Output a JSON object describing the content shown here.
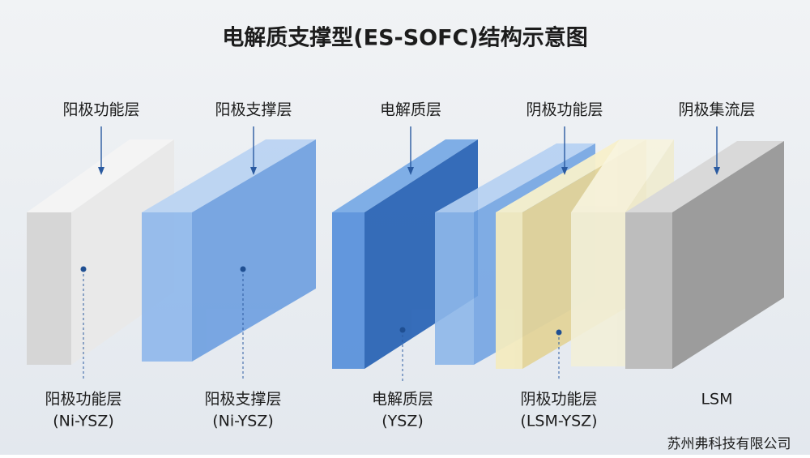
{
  "title": "电解质支撑型(ES-SOFC)结构示意图",
  "layers": [
    {
      "top_label": "阳极功能层",
      "bottom_label": "阳极功能层",
      "material": "(Ni-YSZ)"
    },
    {
      "top_label": "阳极支撑层",
      "bottom_label": "阳极支撑层",
      "material": "(Ni-YSZ)"
    },
    {
      "top_label": "电解质层",
      "bottom_label": "电解质层",
      "material": "(YSZ)"
    },
    {
      "top_label": "阴极功能层",
      "bottom_label": "阴极功能层",
      "material": "(LSM-YSZ)"
    },
    {
      "top_label": "阴极集流层",
      "bottom_label": "LSM"
    }
  ],
  "footer": "苏州弗科技有限公司"
}
